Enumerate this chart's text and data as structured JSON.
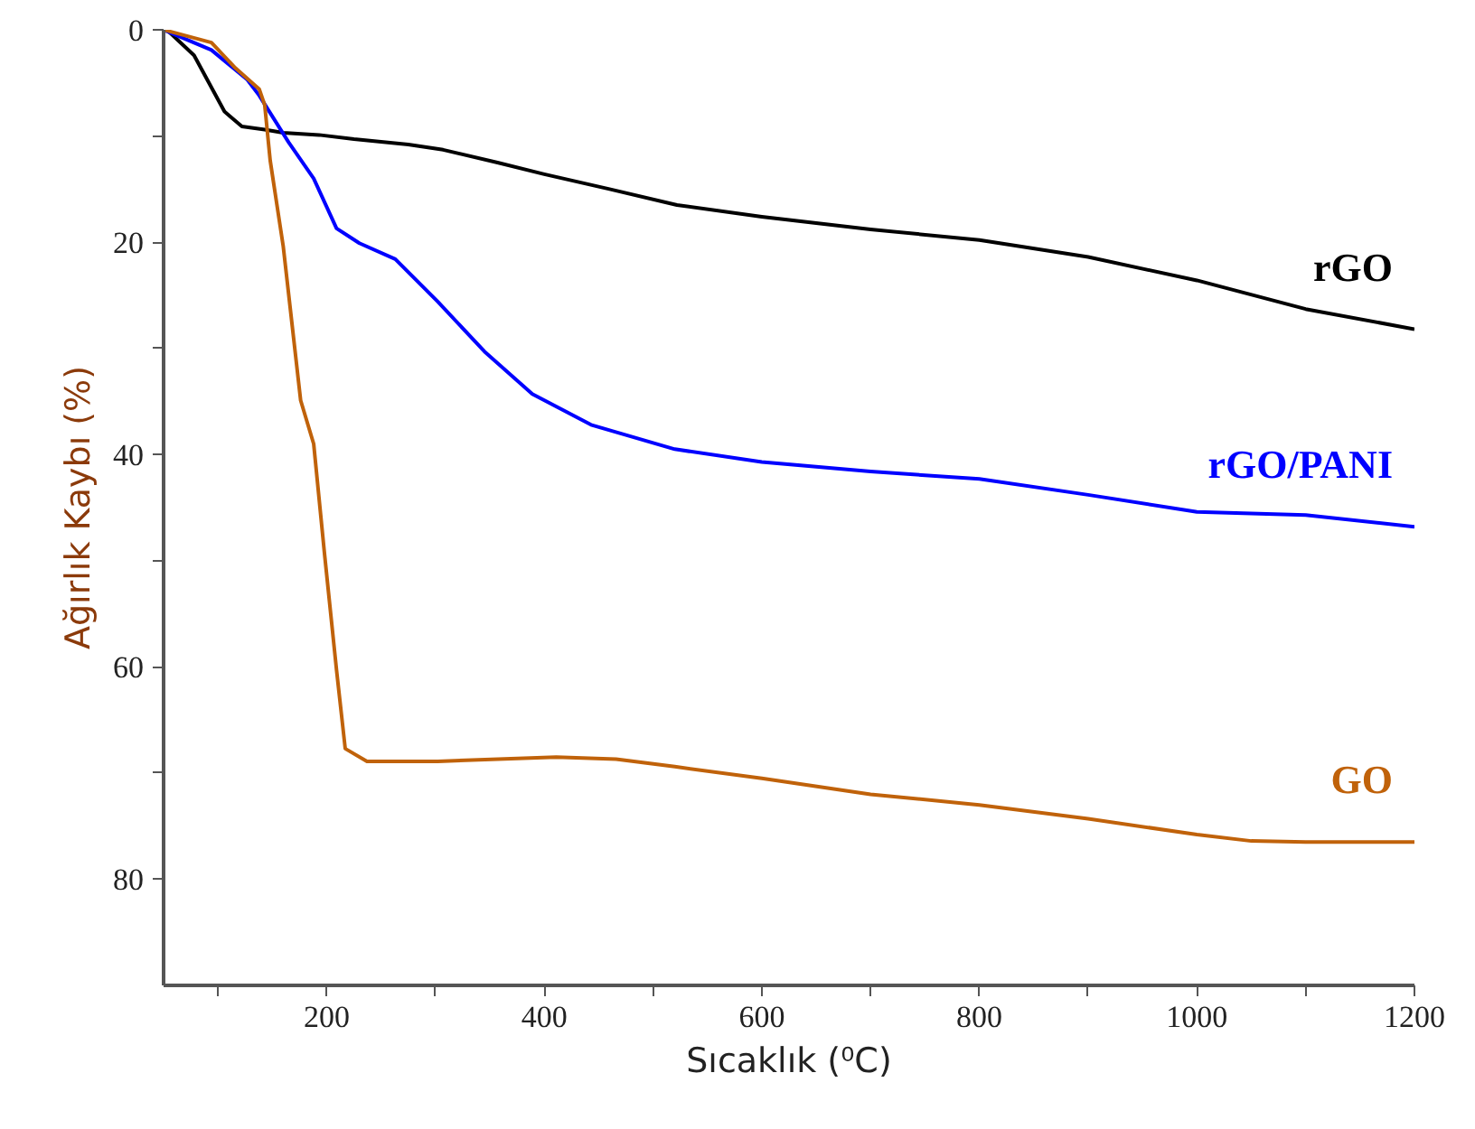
{
  "chart_data": {
    "type": "line",
    "xlabel": "Sıcaklık (⁰C)",
    "ylabel": "Ağırlık Kaybı (%)",
    "xlim": [
      50,
      1200
    ],
    "ylim": [
      90,
      0
    ],
    "xticks": [
      {
        "value": 100,
        "label": null
      },
      200,
      {
        "value": 300,
        "label": null
      },
      400,
      {
        "value": 500,
        "label": null
      },
      600,
      {
        "value": 700,
        "label": null
      },
      800,
      {
        "value": 900,
        "label": null
      },
      1000,
      {
        "value": 1100,
        "label": null
      },
      1200
    ],
    "yticks": [
      0,
      {
        "value": 10,
        "label": null
      },
      20,
      {
        "value": 30,
        "label": null
      },
      40,
      {
        "value": 50,
        "label": null
      },
      60,
      {
        "value": 70,
        "label": null
      },
      80
    ],
    "grid": false,
    "marker": "none",
    "line_style": "solid",
    "series": [
      {
        "name": "rGO",
        "color": "#000000",
        "x": [
          53,
          78,
          106,
          122,
          143,
          160,
          193,
          225,
          275,
          307,
          357,
          400,
          460,
          522,
          600,
          700,
          800,
          900,
          1000,
          1100,
          1200
        ],
        "values": [
          0,
          2.4,
          7.7,
          9.1,
          9.4,
          9.7,
          9.9,
          10.3,
          10.8,
          11.3,
          12.5,
          13.6,
          15,
          16.5,
          17.6,
          18.8,
          19.8,
          21.4,
          23.6,
          26.3,
          28.2
        ]
      },
      {
        "name": "rGO/PANI",
        "color": "#0000ff",
        "x": [
          50,
          94,
          127,
          138,
          165,
          188,
          209,
          230,
          263,
          302,
          345,
          389,
          443,
          520,
          600,
          700,
          800,
          900,
          1000,
          1100,
          1200
        ],
        "values": [
          0,
          1.9,
          4.7,
          6.2,
          10.6,
          14,
          18.7,
          20.1,
          21.6,
          25.6,
          30.3,
          34.3,
          37.2,
          39.5,
          40.7,
          41.6,
          42.3,
          43.8,
          45.4,
          45.7,
          46.8
        ]
      },
      {
        "name": "GO",
        "color": "#c0620a",
        "x": [
          50,
          94,
          116,
          138,
          143,
          148,
          160,
          176,
          188,
          198,
          209,
          217,
          237,
          302,
          411,
          466,
          520,
          600,
          700,
          800,
          900,
          1000,
          1050,
          1100,
          1200
        ],
        "values": [
          0,
          1.2,
          3.6,
          5.6,
          7.1,
          12.3,
          20.4,
          34.9,
          39,
          49.4,
          60.3,
          67.7,
          68.9,
          68.9,
          68.5,
          68.7,
          69.4,
          70.5,
          72,
          73,
          74.3,
          75.8,
          76.4,
          76.5,
          76.5
        ]
      }
    ]
  }
}
